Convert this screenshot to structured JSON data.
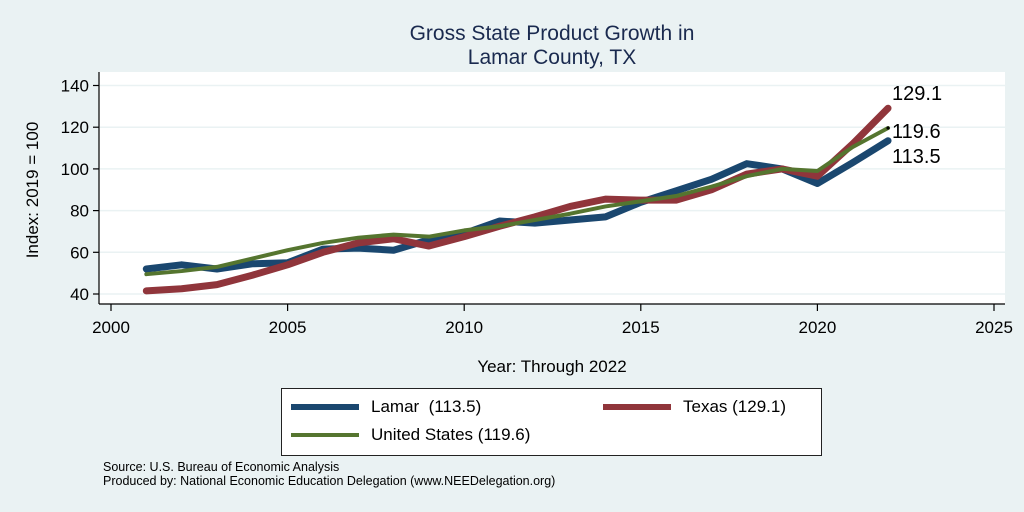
{
  "chart_data": {
    "type": "line",
    "title": [
      "Gross State Product Growth in",
      "Lamar County, TX"
    ],
    "xlabel": "Year: Through 2022",
    "ylabel": "Index: 2019 = 100",
    "xlim": [
      2000,
      2025
    ],
    "ylim": [
      35,
      145
    ],
    "xticks": [
      2000,
      2005,
      2010,
      2015,
      2020,
      2025
    ],
    "yticks": [
      40,
      60,
      80,
      100,
      120,
      140
    ],
    "grid": "horizontal",
    "legend_position": "bottom",
    "x": [
      2001,
      2002,
      2003,
      2004,
      2005,
      2006,
      2007,
      2008,
      2009,
      2010,
      2011,
      2012,
      2013,
      2014,
      2015,
      2016,
      2017,
      2018,
      2019,
      2020,
      2021,
      2022
    ],
    "series": [
      {
        "name": "Lamar",
        "legend_label": "Lamar  (113.5)",
        "color": "#1a476f",
        "values": [
          52.0,
          54.0,
          52.0,
          54.5,
          55.0,
          61.5,
          62.0,
          61.0,
          66.0,
          69.0,
          75.0,
          74.0,
          75.5,
          77.0,
          84.0,
          89.5,
          95.0,
          102.5,
          100.0,
          93.0,
          103.0,
          113.5
        ],
        "end_label": "113.5"
      },
      {
        "name": "Texas",
        "legend_label": "Texas (129.1)",
        "color": "#90353b",
        "values": [
          41.5,
          42.5,
          44.5,
          49.0,
          54.0,
          60.0,
          64.5,
          66.5,
          63.0,
          67.5,
          72.5,
          77.0,
          82.0,
          85.5,
          85.0,
          85.0,
          90.0,
          97.5,
          100.0,
          96.5,
          112.0,
          129.1
        ],
        "end_label": "129.1"
      },
      {
        "name": "United States",
        "legend_label": "United States (119.6)",
        "color": "#55752f",
        "values": [
          49.5,
          51.0,
          53.0,
          57.0,
          61.0,
          64.5,
          67.0,
          68.5,
          67.5,
          70.5,
          72.5,
          75.5,
          78.5,
          82.0,
          84.5,
          87.0,
          91.5,
          96.5,
          100.0,
          99.0,
          110.5,
          119.6
        ],
        "end_label": "119.6"
      }
    ]
  },
  "notes": {
    "source": "Source: U.S. Bureau of Economic Analysis",
    "produced_by": "Produced by: National Economic Education Delegation (www.NEEDelegation.org)"
  }
}
